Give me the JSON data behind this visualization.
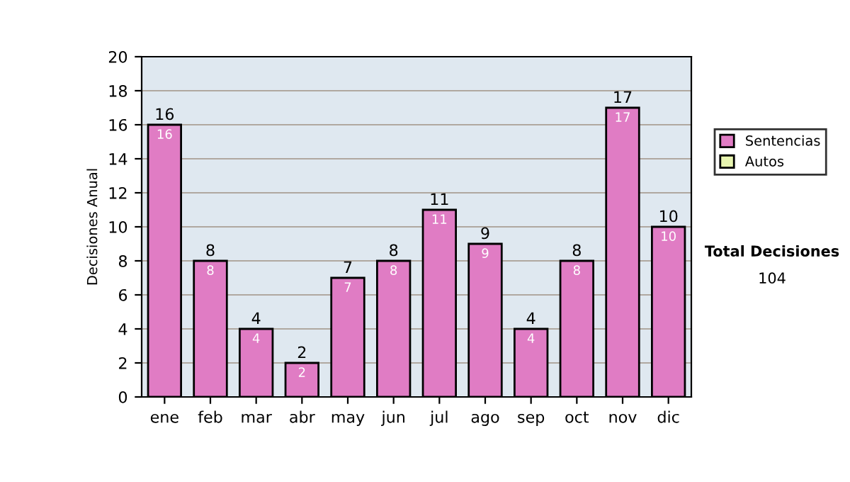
{
  "chart_data": {
    "type": "bar",
    "ylabel": "Decisiones Anual",
    "categories": [
      "ene",
      "feb",
      "mar",
      "abr",
      "may",
      "jun",
      "jul",
      "ago",
      "sep",
      "oct",
      "nov",
      "dic"
    ],
    "series": [
      {
        "name": "Sentencias",
        "color": "#e07cc4",
        "values": [
          16,
          8,
          4,
          2,
          7,
          8,
          11,
          9,
          4,
          8,
          17,
          10
        ]
      },
      {
        "name": "Autos",
        "color": "#e8f5b0",
        "values": [
          null,
          null,
          null,
          null,
          null,
          null,
          null,
          null,
          null,
          null,
          null,
          null
        ]
      }
    ],
    "stacked": true,
    "data_labels": true,
    "totals": [
      "16",
      "8",
      "4",
      "2",
      "7",
      "8",
      "11",
      "9",
      "4",
      "8",
      "17",
      "10"
    ],
    "ylim": [
      0,
      20
    ],
    "yticks": [
      0,
      2,
      4,
      6,
      8,
      10,
      12,
      14,
      16,
      18,
      20
    ],
    "grid": "y",
    "legend": "right",
    "annotations": [
      "Total Decisiones",
      "104"
    ]
  }
}
